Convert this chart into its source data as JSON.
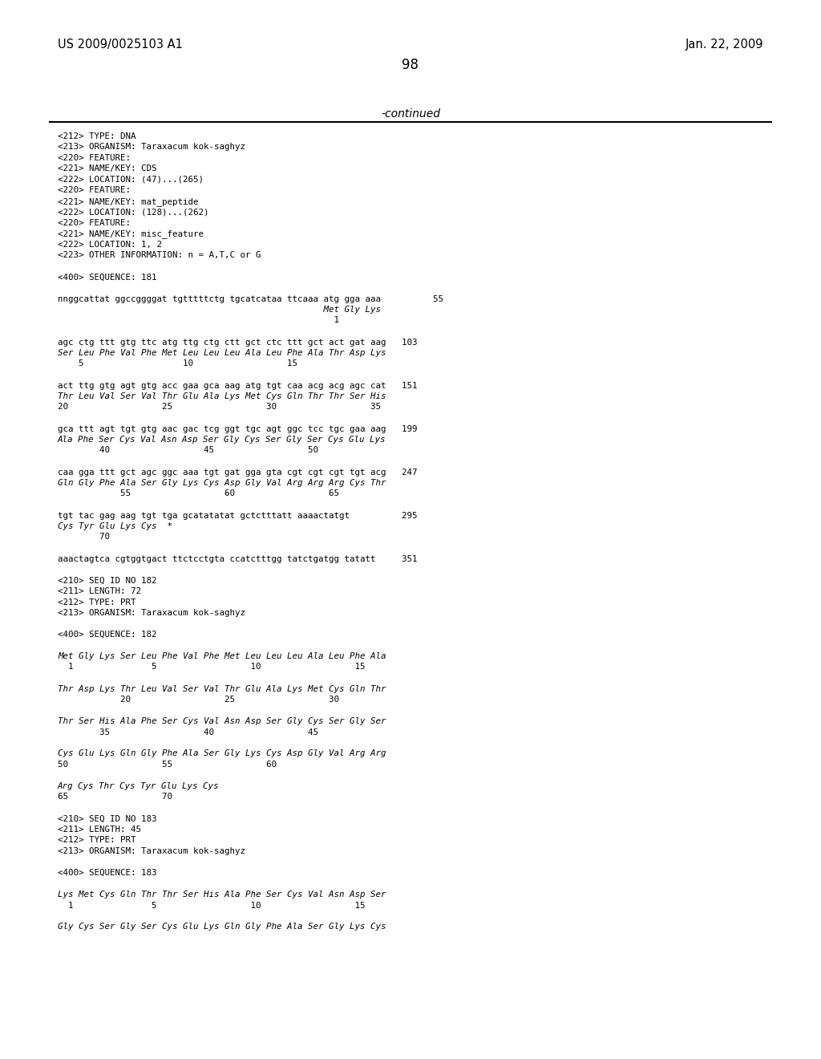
{
  "header_left": "US 2009/0025103 A1",
  "header_right": "Jan. 22, 2009",
  "page_number": "98",
  "continued_label": "-continued",
  "background_color": "#ffffff",
  "text_color": "#000000",
  "body_lines": [
    "<212> TYPE: DNA",
    "<213> ORGANISM: Taraxacum kok-saghyz",
    "<220> FEATURE:",
    "<221> NAME/KEY: CDS",
    "<222> LOCATION: (47)...(265)",
    "<220> FEATURE:",
    "<221> NAME/KEY: mat_peptide",
    "<222> LOCATION: (128)...(262)",
    "<220> FEATURE:",
    "<221> NAME/KEY: misc_feature",
    "<222> LOCATION: 1, 2",
    "<223> OTHER INFORMATION: n = A,T,C or G",
    "",
    "<400> SEQUENCE: 181",
    "",
    "nnggcattat ggccggggat tgtttttctg tgcatcataa ttcaaa atg gga aaa          55",
    "                                                   Met Gly Lys",
    "                                                     1",
    "",
    "agc ctg ttt gtg ttc atg ttg ctg ctt gct ctc ttt gct act gat aag   103",
    "Ser Leu Phe Val Phe Met Leu Leu Leu Ala Leu Phe Ala Thr Asp Lys",
    "    5                   10                  15",
    "",
    "act ttg gtg agt gtg acc gaa gca aag atg tgt caa acg acg agc cat   151",
    "Thr Leu Val Ser Val Thr Glu Ala Lys Met Cys Gln Thr Thr Ser His",
    "20                  25                  30                  35",
    "",
    "gca ttt agt tgt gtg aac gac tcg ggt tgc agt ggc tcc tgc gaa aag   199",
    "Ala Phe Ser Cys Val Asn Asp Ser Gly Cys Ser Gly Ser Cys Glu Lys",
    "        40                  45                  50",
    "",
    "caa gga ttt gct agc ggc aaa tgt gat gga gta cgt cgt cgt tgt acg   247",
    "Gln Gly Phe Ala Ser Gly Lys Cys Asp Gly Val Arg Arg Arg Cys Thr",
    "            55                  60                  65",
    "",
    "tgt tac gag aag tgt tga gcatatatat gctctttatt aaaactatgt          295",
    "Cys Tyr Glu Lys Cys  *",
    "        70",
    "",
    "aaactagtca cgtggtgact ttctcctgta ccatctttgg tatctgatgg tatatt     351",
    "",
    "<210> SEQ ID NO 182",
    "<211> LENGTH: 72",
    "<212> TYPE: PRT",
    "<213> ORGANISM: Taraxacum kok-saghyz",
    "",
    "<400> SEQUENCE: 182",
    "",
    "Met Gly Lys Ser Leu Phe Val Phe Met Leu Leu Leu Ala Leu Phe Ala",
    "  1               5                  10                  15",
    "",
    "Thr Asp Lys Thr Leu Val Ser Val Thr Glu Ala Lys Met Cys Gln Thr",
    "            20                  25                  30",
    "",
    "Thr Ser His Ala Phe Ser Cys Val Asn Asp Ser Gly Cys Ser Gly Ser",
    "        35                  40                  45",
    "",
    "Cys Glu Lys Gln Gly Phe Ala Ser Gly Lys Cys Asp Gly Val Arg Arg",
    "50                  55                  60",
    "",
    "Arg Cys Thr Cys Tyr Glu Lys Cys",
    "65                  70",
    "",
    "<210> SEQ ID NO 183",
    "<211> LENGTH: 45",
    "<212> TYPE: PRT",
    "<213> ORGANISM: Taraxacum kok-saghyz",
    "",
    "<400> SEQUENCE: 183",
    "",
    "Lys Met Cys Gln Thr Thr Ser His Ala Phe Ser Cys Val Asn Asp Ser",
    "  1               5                  10                  15",
    "",
    "Gly Cys Ser Gly Ser Cys Glu Lys Gln Gly Phe Ala Ser Gly Lys Cys"
  ],
  "italic_words": [
    "Lys",
    "Cys",
    "Ser",
    "Glu",
    "Thr",
    "His",
    "Asp",
    "Arg",
    "Tyr",
    "Gln",
    "Gly",
    "Phe",
    "Ala",
    "Val",
    "Asn",
    "Met"
  ],
  "monospace_sections": true
}
